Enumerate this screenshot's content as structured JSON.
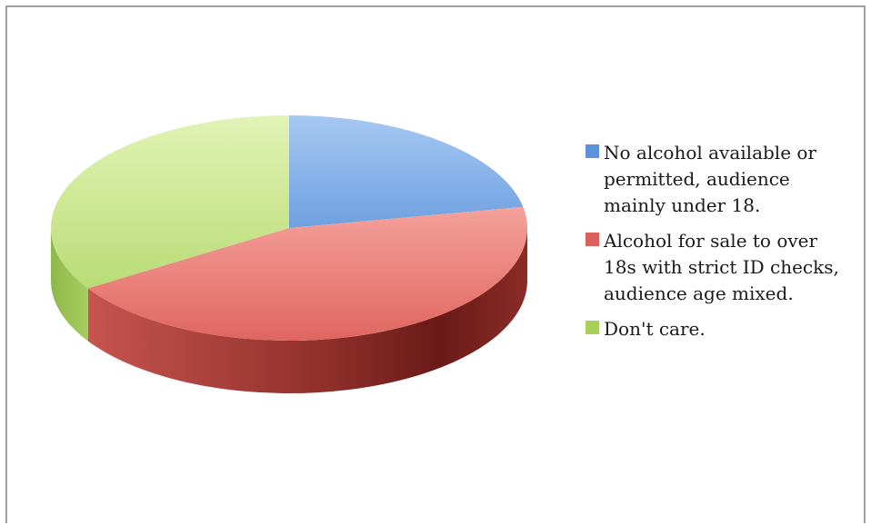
{
  "chart_data": {
    "type": "pie",
    "style": "3d",
    "title": "",
    "legend_placement": "right",
    "slices": [
      {
        "label": "No alcohol available or\npermitted, audience\nmainly under 18.",
        "value": 22,
        "color": "#5b93d9",
        "top_color": "#8ab6ec"
      },
      {
        "label": "Alcohol for sale to over\n18s with strict ID checks,\naudience age mixed.",
        "value": 44,
        "color": "#d9605b",
        "top_color": "#ee8a84"
      },
      {
        "label": "Don't care.",
        "value": 34,
        "color": "#a9d15a",
        "top_color": "#cfe98f"
      }
    ]
  }
}
